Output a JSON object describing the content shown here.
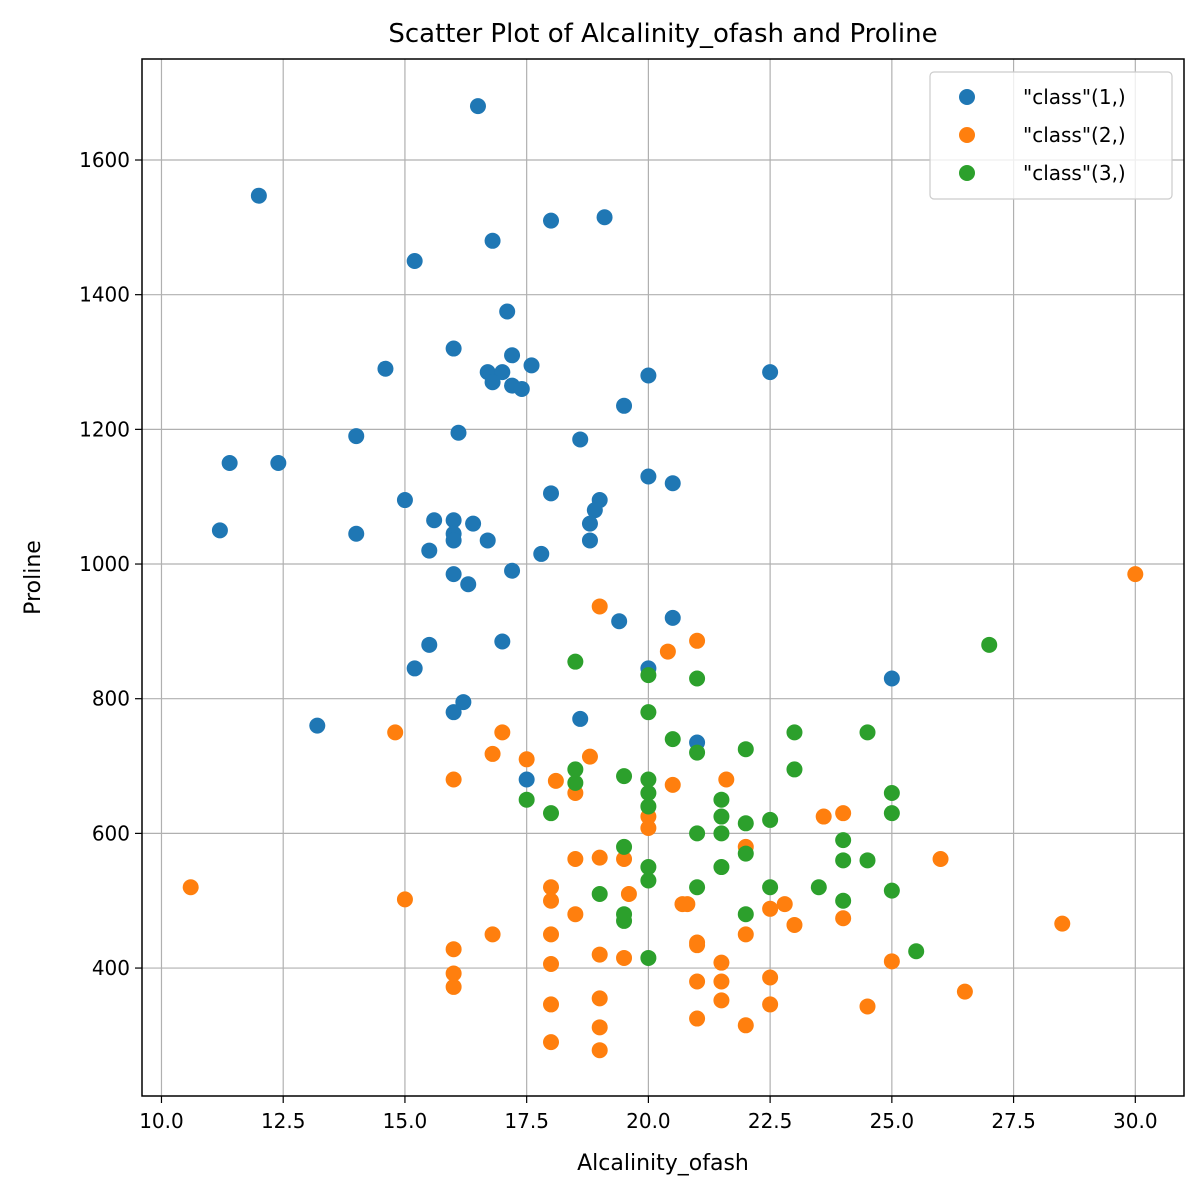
{
  "chart_data": {
    "type": "scatter",
    "title": "Scatter Plot of Alcalinity_ofash and Proline",
    "xlabel": "Alcalinity_ofash",
    "ylabel": "Proline",
    "xlim": [
      9.6,
      31.0
    ],
    "ylim": [
      210,
      1750
    ],
    "xticks": [
      10.0,
      12.5,
      15.0,
      17.5,
      20.0,
      22.5,
      25.0,
      27.5,
      30.0
    ],
    "xtick_labels": [
      "10.0",
      "12.5",
      "15.0",
      "17.5",
      "20.0",
      "22.5",
      "25.0",
      "27.5",
      "30.0"
    ],
    "yticks": [
      400,
      600,
      800,
      1000,
      1200,
      1400,
      1600
    ],
    "ytick_labels": [
      "400",
      "600",
      "800",
      "1000",
      "1200",
      "1400",
      "1600"
    ],
    "grid": true,
    "legend_position": "top-right",
    "series": [
      {
        "name": "\"class\"(1,)",
        "color": "#1f77b4",
        "points": [
          [
            16.5,
            1680
          ],
          [
            12.0,
            1547
          ],
          [
            19.1,
            1515
          ],
          [
            18.0,
            1510
          ],
          [
            16.8,
            1480
          ],
          [
            15.2,
            1450
          ],
          [
            17.1,
            1375
          ],
          [
            16.0,
            1320
          ],
          [
            17.2,
            1310
          ],
          [
            17.6,
            1295
          ],
          [
            14.6,
            1290
          ],
          [
            16.7,
            1285
          ],
          [
            17.0,
            1285
          ],
          [
            20.0,
            1280
          ],
          [
            22.5,
            1285
          ],
          [
            16.8,
            1270
          ],
          [
            17.2,
            1265
          ],
          [
            17.4,
            1260
          ],
          [
            19.5,
            1235
          ],
          [
            16.1,
            1195
          ],
          [
            14.0,
            1190
          ],
          [
            18.6,
            1185
          ],
          [
            11.4,
            1150
          ],
          [
            12.4,
            1150
          ],
          [
            20.0,
            1130
          ],
          [
            20.5,
            1120
          ],
          [
            18.0,
            1105
          ],
          [
            15.0,
            1095
          ],
          [
            19.0,
            1095
          ],
          [
            18.9,
            1080
          ],
          [
            15.6,
            1065
          ],
          [
            16.0,
            1065
          ],
          [
            16.4,
            1060
          ],
          [
            18.8,
            1060
          ],
          [
            11.2,
            1050
          ],
          [
            16.0,
            1045
          ],
          [
            14.0,
            1045
          ],
          [
            16.0,
            1035
          ],
          [
            16.7,
            1035
          ],
          [
            18.8,
            1035
          ],
          [
            15.5,
            1020
          ],
          [
            17.8,
            1015
          ],
          [
            17.2,
            990
          ],
          [
            16.0,
            985
          ],
          [
            16.3,
            970
          ],
          [
            19.4,
            915
          ],
          [
            20.5,
            920
          ],
          [
            17.0,
            885
          ],
          [
            15.5,
            880
          ],
          [
            15.2,
            845
          ],
          [
            20.0,
            845
          ],
          [
            25.0,
            830
          ],
          [
            16.2,
            795
          ],
          [
            16.0,
            780
          ],
          [
            18.6,
            770
          ],
          [
            13.2,
            760
          ],
          [
            21.0,
            735
          ],
          [
            17.5,
            680
          ]
        ]
      },
      {
        "name": "\"class\"(2,)",
        "color": "#ff7f0e",
        "points": [
          [
            30.0,
            985
          ],
          [
            19.0,
            937
          ],
          [
            21.0,
            886
          ],
          [
            20.4,
            870
          ],
          [
            14.8,
            750
          ],
          [
            17.0,
            750
          ],
          [
            16.8,
            718
          ],
          [
            18.8,
            714
          ],
          [
            17.5,
            710
          ],
          [
            16.0,
            680
          ],
          [
            18.1,
            678
          ],
          [
            21.6,
            680
          ],
          [
            20.5,
            672
          ],
          [
            18.5,
            660
          ],
          [
            20.0,
            625
          ],
          [
            20.0,
            608
          ],
          [
            23.6,
            625
          ],
          [
            24.0,
            630
          ],
          [
            22.0,
            580
          ],
          [
            18.5,
            562
          ],
          [
            19.0,
            564
          ],
          [
            19.5,
            562
          ],
          [
            26.0,
            562
          ],
          [
            10.6,
            520
          ],
          [
            18.0,
            520
          ],
          [
            19.6,
            510
          ],
          [
            15.0,
            502
          ],
          [
            18.0,
            500
          ],
          [
            20.7,
            495
          ],
          [
            20.8,
            495
          ],
          [
            22.8,
            495
          ],
          [
            22.5,
            488
          ],
          [
            18.5,
            480
          ],
          [
            24.0,
            474
          ],
          [
            23.0,
            464
          ],
          [
            28.5,
            466
          ],
          [
            16.8,
            450
          ],
          [
            18.0,
            450
          ],
          [
            22.0,
            450
          ],
          [
            21.0,
            438
          ],
          [
            21.0,
            434
          ],
          [
            16.0,
            428
          ],
          [
            19.0,
            420
          ],
          [
            19.5,
            415
          ],
          [
            18.0,
            406
          ],
          [
            21.5,
            408
          ],
          [
            25.0,
            410
          ],
          [
            16.0,
            392
          ],
          [
            22.5,
            386
          ],
          [
            21.0,
            380
          ],
          [
            21.5,
            380
          ],
          [
            16.0,
            372
          ],
          [
            26.5,
            365
          ],
          [
            19.0,
            355
          ],
          [
            21.5,
            352
          ],
          [
            18.0,
            346
          ],
          [
            22.5,
            346
          ],
          [
            24.5,
            343
          ],
          [
            21.0,
            325
          ],
          [
            22.0,
            315
          ],
          [
            19.0,
            312
          ],
          [
            18.0,
            290
          ],
          [
            19.0,
            278
          ]
        ]
      },
      {
        "name": "\"class\"(3,)",
        "color": "#2ca02c",
        "points": [
          [
            27.0,
            880
          ],
          [
            18.5,
            855
          ],
          [
            20.0,
            835
          ],
          [
            21.0,
            830
          ],
          [
            20.0,
            780
          ],
          [
            23.0,
            750
          ],
          [
            24.5,
            750
          ],
          [
            20.5,
            740
          ],
          [
            22.0,
            725
          ],
          [
            21.0,
            720
          ],
          [
            18.5,
            695
          ],
          [
            23.0,
            695
          ],
          [
            19.5,
            685
          ],
          [
            18.5,
            675
          ],
          [
            20.0,
            680
          ],
          [
            20.0,
            660
          ],
          [
            25.0,
            660
          ],
          [
            17.5,
            650
          ],
          [
            21.5,
            650
          ],
          [
            20.0,
            640
          ],
          [
            18.0,
            630
          ],
          [
            25.0,
            630
          ],
          [
            21.5,
            625
          ],
          [
            22.5,
            620
          ],
          [
            22.0,
            615
          ],
          [
            21.0,
            600
          ],
          [
            21.5,
            600
          ],
          [
            24.0,
            590
          ],
          [
            19.5,
            580
          ],
          [
            22.0,
            570
          ],
          [
            24.0,
            560
          ],
          [
            24.5,
            560
          ],
          [
            20.0,
            550
          ],
          [
            21.5,
            550
          ],
          [
            20.0,
            530
          ],
          [
            21.0,
            520
          ],
          [
            22.5,
            520
          ],
          [
            23.5,
            520
          ],
          [
            25.0,
            515
          ],
          [
            19.0,
            510
          ],
          [
            24.0,
            500
          ],
          [
            19.5,
            480
          ],
          [
            22.0,
            480
          ],
          [
            19.5,
            470
          ],
          [
            25.5,
            425
          ],
          [
            20.0,
            415
          ]
        ]
      }
    ]
  }
}
